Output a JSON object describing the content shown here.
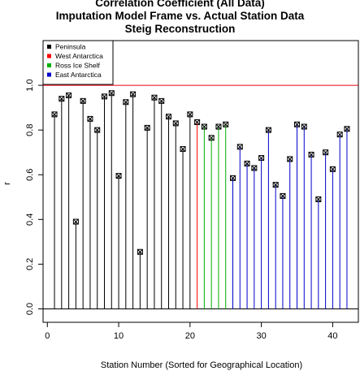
{
  "chart_data": {
    "type": "lollipop",
    "title_lines": [
      "Correlation Coefficient (All Data)",
      "Imputation Model Frame vs. Actual Station Data",
      "Steig Reconstruction"
    ],
    "xlabel": "Station Number (Sorted for Geographical Location)",
    "ylabel": "r",
    "xlim": [
      -0.6,
      43.6
    ],
    "ylim": [
      -0.06,
      1.2
    ],
    "x_ticks": [
      0,
      10,
      20,
      30,
      40
    ],
    "y_ticks": [
      0.0,
      0.2,
      0.4,
      0.6,
      0.8,
      1.0
    ],
    "y_tick_labels": [
      "0.0",
      "0.2",
      "0.4",
      "0.6",
      "0.8",
      "1.0"
    ],
    "reference_lines": [
      {
        "y": 1.0,
        "color": "#e8000b"
      },
      {
        "y": 0.0,
        "color": "#000000"
      }
    ],
    "legend": {
      "placement": "top-left",
      "entries": [
        {
          "label": "Peninsula",
          "color": "#000000"
        },
        {
          "label": "West Antarctica",
          "color": "#ff0000"
        },
        {
          "label": "Ross Ice Shelf",
          "color": "#00b000"
        },
        {
          "label": "East Antarctica",
          "color": "#0000cc"
        }
      ]
    },
    "series": [
      {
        "name": "Peninsula",
        "color": "#000000",
        "x": [
          1,
          2,
          3,
          4,
          5,
          6,
          7,
          8,
          9,
          10,
          11,
          12,
          13,
          14,
          15,
          16,
          17,
          18,
          19,
          20
        ],
        "y": [
          0.87,
          0.94,
          0.955,
          0.39,
          0.93,
          0.85,
          0.8,
          0.95,
          0.965,
          0.595,
          0.925,
          0.96,
          0.255,
          0.81,
          0.945,
          0.93,
          0.86,
          0.83,
          0.715,
          0.87
        ]
      },
      {
        "name": "West Antarctica",
        "color": "#ff0000",
        "x": [
          21
        ],
        "y": [
          0.835
        ]
      },
      {
        "name": "Ross Ice Shelf",
        "color": "#00b000",
        "x": [
          22,
          23,
          24,
          25
        ],
        "y": [
          0.815,
          0.765,
          0.815,
          0.825
        ]
      },
      {
        "name": "East Antarctica",
        "color": "#0000cc",
        "x": [
          26,
          27,
          28,
          29,
          30,
          31,
          32,
          33,
          34,
          35,
          36,
          37,
          38,
          39,
          40,
          41,
          42
        ],
        "y": [
          0.585,
          0.725,
          0.65,
          0.63,
          0.675,
          0.8,
          0.555,
          0.505,
          0.67,
          0.825,
          0.815,
          0.69,
          0.49,
          0.7,
          0.625,
          0.78,
          0.805
        ]
      }
    ]
  }
}
